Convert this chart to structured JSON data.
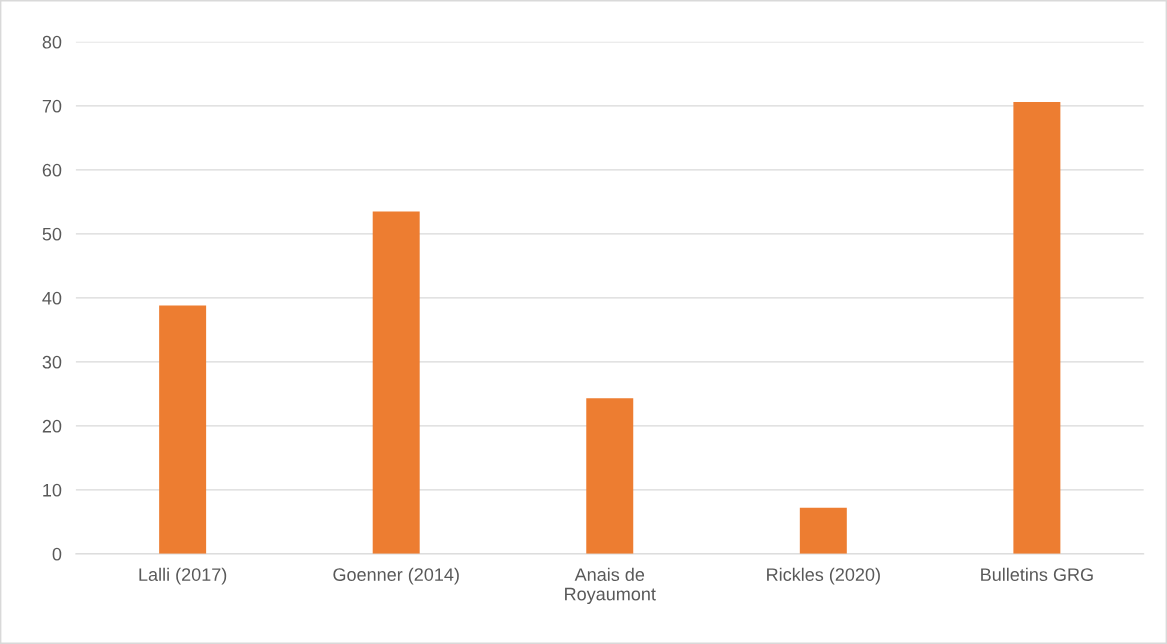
{
  "chart_data": {
    "type": "bar",
    "categories": [
      "Lalli (2017)",
      "Goenner (2014)",
      "Anais de Royaumont",
      "Rickles (2020)",
      "Bulletins GRG"
    ],
    "values": [
      38.8,
      53.5,
      24.3,
      7.2,
      70.6
    ],
    "color": "#ed7d31",
    "ylim": [
      0,
      80
    ],
    "yticks": [
      0,
      10,
      20,
      30,
      40,
      50,
      60,
      70,
      80
    ],
    "grid": "y",
    "legend": false
  }
}
